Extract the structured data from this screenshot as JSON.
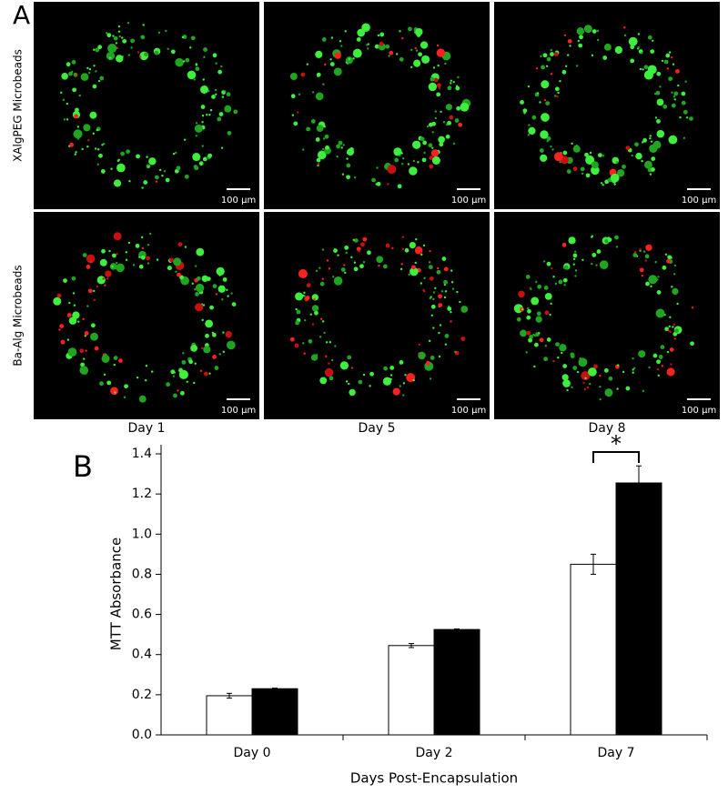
{
  "panel_a": {
    "label": "A",
    "row_labels": [
      "XAlgPEG Microbeads",
      "Ba-Alg Microbeads"
    ],
    "column_labels": [
      "Day 1",
      "Day 5",
      "Day 8"
    ],
    "scale_bars": [
      "100 µm",
      "100 µm",
      "100 µm",
      "100 µm",
      "100 µm",
      "100 µm"
    ]
  },
  "chart_data": {
    "type": "bar",
    "panel_label": "B",
    "x_label": "Days Post-Encapsulation",
    "y_label": "MTT Absorbance",
    "categories": [
      "Day 0",
      "Day 2",
      "Day 7"
    ],
    "series": [
      {
        "color": "#ffffff",
        "values": [
          0.195,
          0.445,
          0.85
        ],
        "errors": [
          0.012,
          0.01,
          0.05
        ]
      },
      {
        "color": "#000000",
        "values": [
          0.23,
          0.525,
          1.255
        ],
        "errors": [
          0.003,
          0.003,
          0.085
        ]
      }
    ],
    "ylim": [
      0,
      1.4
    ],
    "yticks": [
      {
        "value": 0,
        "label": "0.0"
      },
      0.2,
      0.4,
      0.6,
      0.8,
      {
        "value": 1,
        "label": "1.0"
      },
      1.2,
      1.4
    ],
    "significance": "*"
  }
}
